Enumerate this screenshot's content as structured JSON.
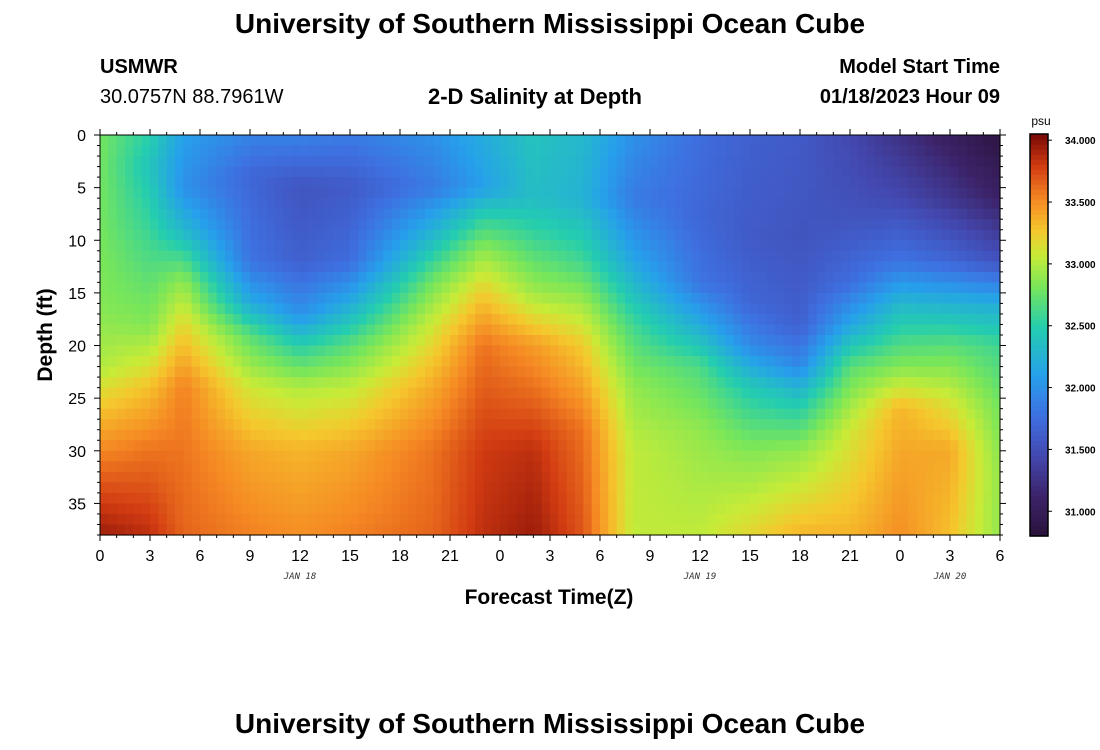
{
  "page": {
    "title": "University of Southern Mississippi Ocean Cube",
    "footer_title": "University of Southern Mississippi Ocean Cube",
    "station": "USMWR",
    "coords": "30.0757N  88.7961W",
    "subtitle": "2-D Salinity at Depth",
    "model_label": "Model Start Time",
    "model_time": "01/18/2023 Hour 09"
  },
  "chart_data": {
    "type": "heatmap",
    "title": "2-D Salinity at Depth",
    "xlabel": "Forecast Time(Z)",
    "ylabel": "Depth (ft)",
    "x_range_hours": [
      0,
      54
    ],
    "y_range_ft": [
      0,
      38
    ],
    "x_ticks": [
      {
        "h": 0,
        "label": "0"
      },
      {
        "h": 3,
        "label": "3"
      },
      {
        "h": 6,
        "label": "6"
      },
      {
        "h": 9,
        "label": "9"
      },
      {
        "h": 12,
        "label": "12"
      },
      {
        "h": 15,
        "label": "15"
      },
      {
        "h": 18,
        "label": "18"
      },
      {
        "h": 21,
        "label": "21"
      },
      {
        "h": 24,
        "label": "0"
      },
      {
        "h": 27,
        "label": "3"
      },
      {
        "h": 30,
        "label": "6"
      },
      {
        "h": 33,
        "label": "9"
      },
      {
        "h": 36,
        "label": "12"
      },
      {
        "h": 39,
        "label": "15"
      },
      {
        "h": 42,
        "label": "18"
      },
      {
        "h": 45,
        "label": "21"
      },
      {
        "h": 48,
        "label": "0"
      },
      {
        "h": 51,
        "label": "3"
      },
      {
        "h": 54,
        "label": "6"
      }
    ],
    "date_labels": [
      {
        "h": 12,
        "label": "JAN 18"
      },
      {
        "h": 36,
        "label": "JAN 19"
      },
      {
        "h": 51,
        "label": "JAN 20"
      }
    ],
    "y_ticks": [
      0,
      5,
      10,
      15,
      20,
      25,
      30,
      35
    ],
    "colorbar": {
      "unit": "psu",
      "range": [
        30.8,
        34.05
      ],
      "ticks": [
        {
          "v": 34.0,
          "label": "34.000"
        },
        {
          "v": 33.5,
          "label": "33.500"
        },
        {
          "v": 33.0,
          "label": "33.000"
        },
        {
          "v": 32.5,
          "label": "32.500"
        },
        {
          "v": 32.0,
          "label": "32.000"
        },
        {
          "v": 31.5,
          "label": "31.500"
        },
        {
          "v": 31.0,
          "label": "31.000"
        }
      ]
    },
    "profiles": [
      {
        "t": 0,
        "depths": [
          0,
          8,
          16,
          22,
          27,
          33,
          38
        ],
        "values": [
          32.8,
          32.8,
          32.85,
          33.0,
          33.35,
          33.7,
          33.95
        ]
      },
      {
        "t": 3,
        "depths": [
          0,
          3,
          10,
          18,
          24,
          30,
          38
        ],
        "values": [
          32.5,
          32.4,
          32.6,
          32.85,
          33.3,
          33.6,
          33.85
        ]
      },
      {
        "t": 5,
        "depths": [
          0,
          5,
          9,
          14,
          18,
          24,
          38
        ],
        "values": [
          32.1,
          32.0,
          32.3,
          32.9,
          33.2,
          33.55,
          33.65
        ]
      },
      {
        "t": 9,
        "depths": [
          0,
          4,
          12,
          16,
          19,
          24,
          30,
          38
        ],
        "values": [
          31.9,
          31.7,
          31.8,
          32.2,
          32.7,
          33.1,
          33.4,
          33.55
        ]
      },
      {
        "t": 12,
        "depths": [
          0,
          5,
          12,
          17,
          20,
          24,
          30,
          38
        ],
        "values": [
          31.9,
          31.55,
          31.65,
          32.0,
          32.5,
          33.0,
          33.35,
          33.5
        ]
      },
      {
        "t": 15,
        "depths": [
          0,
          5,
          12,
          16,
          20,
          24,
          30,
          38
        ],
        "values": [
          31.85,
          31.6,
          31.75,
          32.2,
          32.7,
          33.05,
          33.4,
          33.55
        ]
      },
      {
        "t": 20,
        "depths": [
          0,
          5,
          10,
          14,
          18,
          24,
          30,
          38
        ],
        "values": [
          32.0,
          31.85,
          32.35,
          32.8,
          33.1,
          33.4,
          33.6,
          33.65
        ]
      },
      {
        "t": 23,
        "depths": [
          0,
          5,
          8,
          11,
          15,
          20,
          30,
          38
        ],
        "values": [
          32.2,
          32.1,
          32.55,
          32.9,
          33.25,
          33.6,
          33.8,
          33.85
        ]
      },
      {
        "t": 26,
        "depths": [
          0,
          6,
          10,
          15,
          20,
          30,
          38
        ],
        "values": [
          32.4,
          32.35,
          32.6,
          32.95,
          33.45,
          33.85,
          33.95
        ]
      },
      {
        "t": 29,
        "depths": [
          0,
          6,
          12,
          16,
          20,
          28,
          38
        ],
        "values": [
          32.3,
          32.25,
          32.6,
          32.95,
          33.25,
          33.6,
          33.7
        ]
      },
      {
        "t": 32,
        "depths": [
          0,
          6,
          12,
          18,
          24,
          30,
          38
        ],
        "values": [
          32.0,
          31.85,
          32.15,
          32.6,
          32.9,
          33.05,
          33.05
        ]
      },
      {
        "t": 36,
        "depths": [
          0,
          8,
          14,
          18,
          22,
          28,
          38
        ],
        "values": [
          31.75,
          31.7,
          31.8,
          32.2,
          32.65,
          32.9,
          33.05
        ]
      },
      {
        "t": 39,
        "depths": [
          0,
          10,
          16,
          20,
          24,
          30,
          38
        ],
        "values": [
          31.65,
          31.6,
          31.7,
          31.95,
          32.45,
          32.85,
          33.2
        ]
      },
      {
        "t": 42,
        "depths": [
          0,
          10,
          18,
          22,
          25,
          30,
          38
        ],
        "values": [
          31.6,
          31.55,
          31.65,
          31.95,
          32.4,
          32.9,
          33.35
        ]
      },
      {
        "t": 45,
        "depths": [
          0,
          8,
          14,
          18,
          22,
          28,
          38
        ],
        "values": [
          31.45,
          31.55,
          31.75,
          32.15,
          32.7,
          33.1,
          33.35
        ]
      },
      {
        "t": 48,
        "depths": [
          0,
          6,
          12,
          16,
          22,
          26,
          38
        ],
        "values": [
          31.25,
          31.45,
          31.8,
          32.3,
          32.85,
          33.35,
          33.5
        ]
      },
      {
        "t": 51,
        "depths": [
          0,
          6,
          12,
          16,
          20,
          25,
          30,
          38
        ],
        "values": [
          31.05,
          31.3,
          31.7,
          32.25,
          32.7,
          33.1,
          33.4,
          33.3
        ]
      },
      {
        "t": 54,
        "depths": [
          0,
          6,
          12,
          16,
          20,
          26,
          32,
          38
        ],
        "values": [
          30.85,
          31.1,
          31.55,
          32.2,
          32.6,
          32.8,
          32.9,
          32.9
        ]
      }
    ]
  }
}
